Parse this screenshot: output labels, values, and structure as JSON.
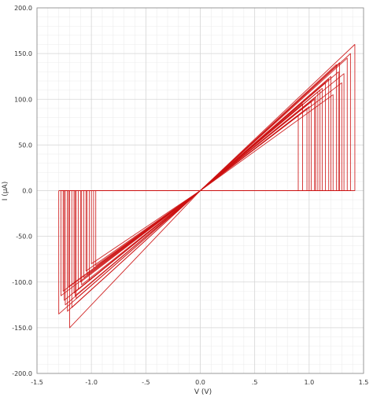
{
  "chart_data": {
    "type": "line",
    "title": "",
    "xlabel": "V (V)",
    "ylabel": "I (µA)",
    "xlim": [
      -1.5,
      1.5
    ],
    "ylim": [
      -200,
      200
    ],
    "x_ticks": [
      -1.5,
      -1.0,
      -0.5,
      0.0,
      0.5,
      1.0,
      1.5
    ],
    "x_tick_labels": [
      "-1.5",
      "-1.0",
      "-.5",
      "0.0",
      ".5",
      "1.0",
      "1.5"
    ],
    "y_ticks": [
      -200,
      -150,
      -100,
      -50,
      0,
      50,
      100,
      150,
      200
    ],
    "y_tick_labels": [
      "-200.0",
      "-150.0",
      "-100.0",
      "-50.0",
      "0.0",
      "50.0",
      "100.0",
      "150.0",
      "200.0"
    ],
    "grid": true,
    "line_color": "#cc1111",
    "series": [
      {
        "values": [
          [
            -1.22,
            0
          ],
          [
            -1.22,
            -132
          ],
          [
            0,
            0
          ],
          [
            1.27,
            130
          ],
          [
            1.27,
            0
          ],
          [
            -1.22,
            0
          ]
        ]
      },
      {
        "values": [
          [
            -1.15,
            0
          ],
          [
            -1.15,
            -115
          ],
          [
            0,
            0
          ],
          [
            1.1,
            110
          ],
          [
            1.1,
            0
          ],
          [
            -1.15,
            0
          ]
        ]
      },
      {
        "values": [
          [
            -1.05,
            0
          ],
          [
            -1.05,
            -88
          ],
          [
            0,
            0
          ],
          [
            1.0,
            92
          ],
          [
            1.0,
            0
          ],
          [
            -1.05,
            0
          ]
        ]
      },
      {
        "values": [
          [
            -1.25,
            0
          ],
          [
            -1.25,
            -120
          ],
          [
            0,
            0
          ],
          [
            1.3,
            118
          ],
          [
            1.3,
            0
          ],
          [
            -1.25,
            0
          ]
        ]
      },
      {
        "values": [
          [
            -1.0,
            0
          ],
          [
            -1.0,
            -80
          ],
          [
            0,
            0
          ],
          [
            0.98,
            90
          ],
          [
            0.98,
            0
          ],
          [
            -1.0,
            0
          ]
        ]
      },
      {
        "values": [
          [
            -1.2,
            0
          ],
          [
            -1.2,
            -150
          ],
          [
            0,
            0
          ],
          [
            1.42,
            160
          ],
          [
            1.42,
            0
          ],
          [
            -1.2,
            0
          ]
        ]
      },
      {
        "values": [
          [
            -1.1,
            0
          ],
          [
            -1.1,
            -100
          ],
          [
            0,
            0
          ],
          [
            1.05,
            100
          ],
          [
            1.05,
            0
          ],
          [
            -1.1,
            0
          ]
        ]
      },
      {
        "values": [
          [
            -1.28,
            0
          ],
          [
            -1.28,
            -115
          ],
          [
            0,
            0
          ],
          [
            1.2,
            125
          ],
          [
            1.2,
            0
          ],
          [
            -1.28,
            0
          ]
        ]
      },
      {
        "values": [
          [
            -0.98,
            0
          ],
          [
            -0.98,
            -85
          ],
          [
            0,
            0
          ],
          [
            1.22,
            105
          ],
          [
            1.22,
            0
          ],
          [
            -0.98,
            0
          ]
        ]
      },
      {
        "values": [
          [
            -1.18,
            0
          ],
          [
            -1.18,
            -128
          ],
          [
            0,
            0
          ],
          [
            1.35,
            145
          ],
          [
            1.35,
            0
          ],
          [
            -1.18,
            0
          ]
        ]
      },
      {
        "values": [
          [
            -1.02,
            0
          ],
          [
            -1.02,
            -98
          ],
          [
            0,
            0
          ],
          [
            0.94,
            95
          ],
          [
            0.94,
            0
          ],
          [
            -1.02,
            0
          ]
        ]
      },
      {
        "values": [
          [
            -1.12,
            0
          ],
          [
            -1.12,
            -108
          ],
          [
            0,
            0
          ],
          [
            1.15,
            118
          ],
          [
            1.15,
            0
          ],
          [
            -1.12,
            0
          ]
        ]
      },
      {
        "values": [
          [
            -1.3,
            0
          ],
          [
            -1.3,
            -135
          ],
          [
            0,
            0
          ],
          [
            1.25,
            138
          ],
          [
            1.25,
            0
          ],
          [
            -1.3,
            0
          ]
        ]
      },
      {
        "values": [
          [
            -1.07,
            0
          ],
          [
            -1.07,
            -95
          ],
          [
            0,
            0
          ],
          [
            1.08,
            108
          ],
          [
            1.08,
            0
          ],
          [
            -1.07,
            0
          ]
        ]
      },
      {
        "values": [
          [
            -1.16,
            0
          ],
          [
            -1.16,
            -112
          ],
          [
            0,
            0
          ],
          [
            1.38,
            150
          ],
          [
            1.38,
            0
          ],
          [
            -1.16,
            0
          ]
        ]
      },
      {
        "values": [
          [
            -1.24,
            0
          ],
          [
            -1.24,
            -125
          ],
          [
            0,
            0
          ],
          [
            1.12,
            112
          ],
          [
            1.12,
            0
          ],
          [
            -1.24,
            0
          ]
        ]
      },
      {
        "values": [
          [
            -1.04,
            0
          ],
          [
            -1.04,
            -92
          ],
          [
            0,
            0
          ],
          [
            0.9,
            82
          ],
          [
            0.9,
            0
          ],
          [
            -1.04,
            0
          ]
        ]
      },
      {
        "values": [
          [
            -1.14,
            0
          ],
          [
            -1.14,
            -118
          ],
          [
            0,
            0
          ],
          [
            1.18,
            122
          ],
          [
            1.18,
            0
          ],
          [
            -1.14,
            0
          ]
        ]
      },
      {
        "values": [
          [
            -1.21,
            0
          ],
          [
            -1.21,
            -105
          ],
          [
            0,
            0
          ],
          [
            1.32,
            128
          ],
          [
            1.32,
            0
          ],
          [
            -1.21,
            0
          ]
        ]
      },
      {
        "values": [
          [
            -0.96,
            0
          ],
          [
            -0.96,
            -82
          ],
          [
            0,
            0
          ],
          [
            1.02,
            98
          ],
          [
            1.02,
            0
          ],
          [
            -0.96,
            0
          ]
        ]
      },
      {
        "values": [
          [
            -1.09,
            0
          ],
          [
            -1.09,
            -103
          ],
          [
            0,
            0
          ],
          [
            1.28,
            140
          ],
          [
            1.28,
            0
          ],
          [
            -1.09,
            0
          ]
        ]
      },
      {
        "values": [
          [
            -1.26,
            0
          ],
          [
            -1.26,
            -110
          ],
          [
            0,
            0
          ],
          [
            1.06,
            102
          ],
          [
            1.06,
            0
          ],
          [
            -1.26,
            0
          ]
        ]
      }
    ]
  }
}
